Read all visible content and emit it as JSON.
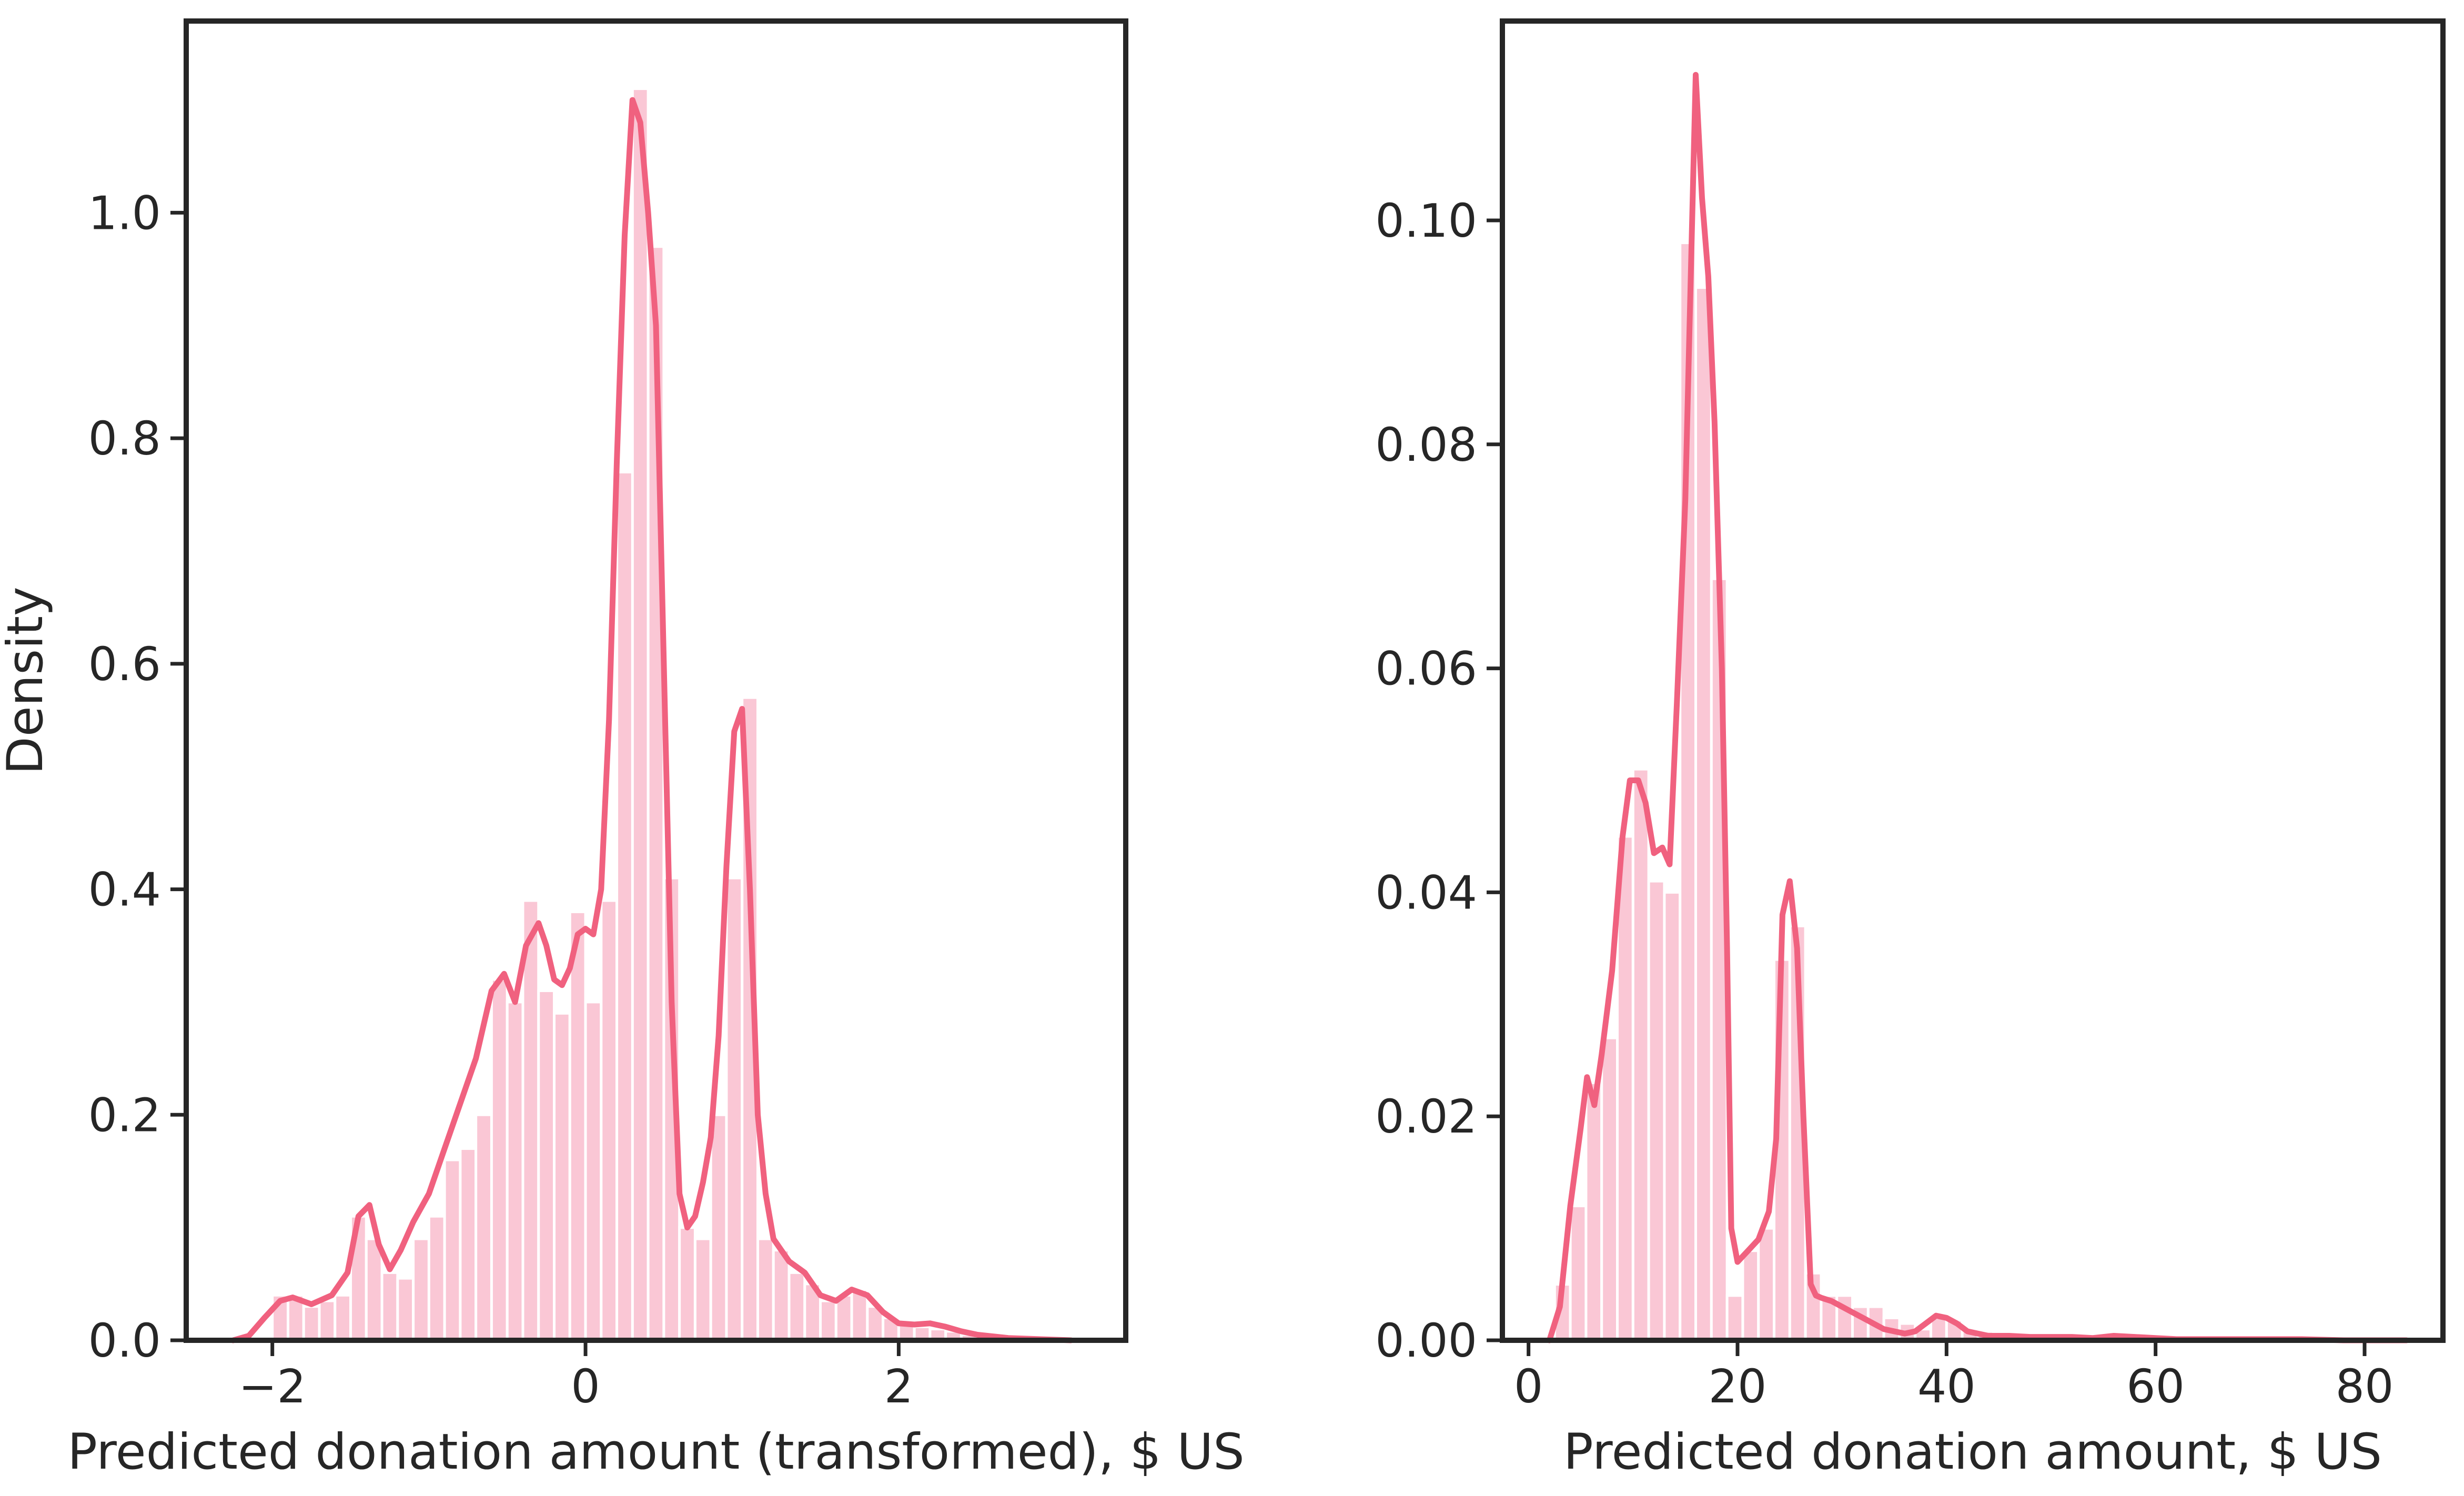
{
  "colors": {
    "bar": "#f7a4bb",
    "kde": "#f0617f",
    "axis": "#262626"
  },
  "chart_data": [
    {
      "type": "bar",
      "kind": "histogram with kde density curve",
      "title": "",
      "xlabel": "Predicted donation amount (transformed), $ US",
      "ylabel": "Density",
      "xlim": [
        -2.55,
        3.45
      ],
      "ylim": [
        0,
        1.17
      ],
      "xticks": [
        -2,
        0,
        2
      ],
      "xtick_labels": [
        "−2",
        "0",
        "2"
      ],
      "yticks": [
        0.0,
        0.2,
        0.4,
        0.6,
        0.8,
        1.0
      ],
      "ytick_labels": [
        "0.0",
        "0.2",
        "0.4",
        "0.6",
        "0.8",
        "1.0"
      ],
      "grid": false,
      "bin_width": 0.1,
      "bins": [
        {
          "x0": -2.0,
          "value": 0.04
        },
        {
          "x0": -1.9,
          "value": 0.04
        },
        {
          "x0": -1.8,
          "value": 0.03
        },
        {
          "x0": -1.7,
          "value": 0.035
        },
        {
          "x0": -1.6,
          "value": 0.04
        },
        {
          "x0": -1.5,
          "value": 0.11
        },
        {
          "x0": -1.4,
          "value": 0.09
        },
        {
          "x0": -1.3,
          "value": 0.06
        },
        {
          "x0": -1.2,
          "value": 0.055
        },
        {
          "x0": -1.1,
          "value": 0.09
        },
        {
          "x0": -1.0,
          "value": 0.11
        },
        {
          "x0": -0.9,
          "value": 0.16
        },
        {
          "x0": -0.8,
          "value": 0.17
        },
        {
          "x0": -0.7,
          "value": 0.2
        },
        {
          "x0": -0.6,
          "value": 0.32
        },
        {
          "x0": -0.5,
          "value": 0.3
        },
        {
          "x0": -0.4,
          "value": 0.39
        },
        {
          "x0": -0.3,
          "value": 0.31
        },
        {
          "x0": -0.2,
          "value": 0.29
        },
        {
          "x0": -0.1,
          "value": 0.38
        },
        {
          "x0": 0.0,
          "value": 0.3
        },
        {
          "x0": 0.1,
          "value": 0.39
        },
        {
          "x0": 0.2,
          "value": 0.77
        },
        {
          "x0": 0.3,
          "value": 1.11
        },
        {
          "x0": 0.4,
          "value": 0.97
        },
        {
          "x0": 0.5,
          "value": 0.41
        },
        {
          "x0": 0.6,
          "value": 0.1
        },
        {
          "x0": 0.7,
          "value": 0.09
        },
        {
          "x0": 0.8,
          "value": 0.2
        },
        {
          "x0": 0.9,
          "value": 0.41
        },
        {
          "x0": 1.0,
          "value": 0.57
        },
        {
          "x0": 1.1,
          "value": 0.09
        },
        {
          "x0": 1.2,
          "value": 0.08
        },
        {
          "x0": 1.3,
          "value": 0.06
        },
        {
          "x0": 1.4,
          "value": 0.05
        },
        {
          "x0": 1.5,
          "value": 0.035
        },
        {
          "x0": 1.6,
          "value": 0.04
        },
        {
          "x0": 1.7,
          "value": 0.045
        },
        {
          "x0": 1.8,
          "value": 0.03
        },
        {
          "x0": 1.9,
          "value": 0.02
        },
        {
          "x0": 2.0,
          "value": 0.015
        },
        {
          "x0": 2.1,
          "value": 0.012
        },
        {
          "x0": 2.2,
          "value": 0.01
        },
        {
          "x0": 2.3,
          "value": 0.008
        },
        {
          "x0": 2.4,
          "value": 0.005
        },
        {
          "x0": 2.5,
          "value": 0.004
        },
        {
          "x0": 2.6,
          "value": 0.003
        },
        {
          "x0": 2.7,
          "value": 0.002
        },
        {
          "x0": 2.8,
          "value": 0.002
        },
        {
          "x0": 2.9,
          "value": 0.001
        }
      ],
      "kde": {
        "x": [
          -2.25,
          -2.15,
          -2.05,
          -1.95,
          -1.87,
          -1.75,
          -1.62,
          -1.52,
          -1.45,
          -1.38,
          -1.32,
          -1.25,
          -1.18,
          -1.1,
          -1.0,
          -0.9,
          -0.8,
          -0.7,
          -0.6,
          -0.52,
          -0.45,
          -0.38,
          -0.3,
          -0.25,
          -0.2,
          -0.15,
          -0.1,
          -0.05,
          0.0,
          0.05,
          0.1,
          0.15,
          0.2,
          0.25,
          0.3,
          0.35,
          0.4,
          0.45,
          0.5,
          0.55,
          0.6,
          0.65,
          0.7,
          0.75,
          0.8,
          0.85,
          0.9,
          0.95,
          1.0,
          1.05,
          1.1,
          1.15,
          1.2,
          1.25,
          1.3,
          1.4,
          1.5,
          1.6,
          1.7,
          1.8,
          1.9,
          2.0,
          2.1,
          2.2,
          2.3,
          2.4,
          2.5,
          2.7,
          2.9,
          3.1
        ],
        "y": [
          0.0,
          0.004,
          0.02,
          0.035,
          0.038,
          0.032,
          0.04,
          0.06,
          0.11,
          0.12,
          0.085,
          0.063,
          0.08,
          0.105,
          0.13,
          0.17,
          0.21,
          0.25,
          0.31,
          0.325,
          0.3,
          0.35,
          0.37,
          0.35,
          0.32,
          0.315,
          0.33,
          0.36,
          0.365,
          0.36,
          0.4,
          0.55,
          0.78,
          0.98,
          1.1,
          1.08,
          1.0,
          0.9,
          0.6,
          0.3,
          0.13,
          0.1,
          0.11,
          0.14,
          0.18,
          0.27,
          0.42,
          0.54,
          0.56,
          0.4,
          0.2,
          0.13,
          0.09,
          0.08,
          0.07,
          0.06,
          0.04,
          0.035,
          0.045,
          0.04,
          0.025,
          0.015,
          0.014,
          0.015,
          0.012,
          0.008,
          0.005,
          0.002,
          0.001,
          0.0
        ]
      }
    },
    {
      "type": "bar",
      "kind": "histogram with kde density curve",
      "title": "",
      "xlabel": "Predicted donation amount, $ US",
      "ylabel": "",
      "xlim": [
        -2.5,
        87.5
      ],
      "ylim": [
        0,
        0.1178
      ],
      "xticks": [
        0,
        20,
        40,
        60,
        80
      ],
      "xtick_labels": [
        "0",
        "20",
        "40",
        "60",
        "80"
      ],
      "yticks": [
        0.0,
        0.02,
        0.04,
        0.06,
        0.08,
        0.1
      ],
      "ytick_labels": [
        "0.00",
        "0.02",
        "0.04",
        "0.06",
        "0.08",
        "0.10"
      ],
      "grid": false,
      "bin_width": 1.5,
      "bins": [
        {
          "x0": 2.5,
          "value": 0.005
        },
        {
          "x0": 4.0,
          "value": 0.012
        },
        {
          "x0": 5.5,
          "value": 0.023
        },
        {
          "x0": 7.0,
          "value": 0.027
        },
        {
          "x0": 8.5,
          "value": 0.045
        },
        {
          "x0": 10.0,
          "value": 0.051
        },
        {
          "x0": 11.5,
          "value": 0.041
        },
        {
          "x0": 13.0,
          "value": 0.04
        },
        {
          "x0": 14.5,
          "value": 0.098
        },
        {
          "x0": 16.0,
          "value": 0.094
        },
        {
          "x0": 17.5,
          "value": 0.068
        },
        {
          "x0": 19.0,
          "value": 0.004
        },
        {
          "x0": 20.5,
          "value": 0.008
        },
        {
          "x0": 22.0,
          "value": 0.01
        },
        {
          "x0": 23.5,
          "value": 0.034
        },
        {
          "x0": 25.0,
          "value": 0.037
        },
        {
          "x0": 26.5,
          "value": 0.006
        },
        {
          "x0": 28.0,
          "value": 0.004
        },
        {
          "x0": 29.5,
          "value": 0.004
        },
        {
          "x0": 31.0,
          "value": 0.003
        },
        {
          "x0": 32.5,
          "value": 0.003
        },
        {
          "x0": 34.0,
          "value": 0.002
        },
        {
          "x0": 35.5,
          "value": 0.0015
        },
        {
          "x0": 37.0,
          "value": 0.001
        },
        {
          "x0": 38.5,
          "value": 0.002
        },
        {
          "x0": 40.0,
          "value": 0.0018
        },
        {
          "x0": 41.5,
          "value": 0.001
        },
        {
          "x0": 43.0,
          "value": 0.0008
        },
        {
          "x0": 44.5,
          "value": 0.0006
        },
        {
          "x0": 46.0,
          "value": 0.0004
        },
        {
          "x0": 47.5,
          "value": 0.0003
        },
        {
          "x0": 49.0,
          "value": 0.0003
        },
        {
          "x0": 50.5,
          "value": 0.0002
        },
        {
          "x0": 52.0,
          "value": 0.0003
        },
        {
          "x0": 53.5,
          "value": 0.0002
        },
        {
          "x0": 55.0,
          "value": 0.0002
        },
        {
          "x0": 56.5,
          "value": 0.0003
        },
        {
          "x0": 58.0,
          "value": 0.0002
        },
        {
          "x0": 59.5,
          "value": 0.0001
        },
        {
          "x0": 61.0,
          "value": 0.0001
        },
        {
          "x0": 62.5,
          "value": 0.0001
        },
        {
          "x0": 64.0,
          "value": 0.0001
        }
      ],
      "kde": {
        "x": [
          2.0,
          3.0,
          4.0,
          5.0,
          5.6,
          6.3,
          7.0,
          8.0,
          9.0,
          9.7,
          10.5,
          11.2,
          12.0,
          12.8,
          13.5,
          14.2,
          15.0,
          15.5,
          16.0,
          16.6,
          17.2,
          17.8,
          18.5,
          19.0,
          19.4,
          20.0,
          21.0,
          22.0,
          23.0,
          23.7,
          24.3,
          25.0,
          25.7,
          26.3,
          27.0,
          27.5,
          28.0,
          29.0,
          30.0,
          31.0,
          32.0,
          33.0,
          34.0,
          35.0,
          36.0,
          37.0,
          38.0,
          39.0,
          40.0,
          41.0,
          42.0,
          43.0,
          44.0,
          46.0,
          48.0,
          50.0,
          52.0,
          54.0,
          56.0,
          58.0,
          60.0,
          62.0,
          66.0,
          70.0,
          74.0,
          78.0,
          84.0
        ],
        "y": [
          0.0,
          0.003,
          0.012,
          0.019,
          0.0235,
          0.021,
          0.0255,
          0.033,
          0.045,
          0.05,
          0.05,
          0.048,
          0.0435,
          0.044,
          0.0425,
          0.057,
          0.075,
          0.094,
          0.113,
          0.102,
          0.095,
          0.082,
          0.06,
          0.035,
          0.01,
          0.007,
          0.008,
          0.009,
          0.0115,
          0.018,
          0.038,
          0.041,
          0.035,
          0.02,
          0.005,
          0.004,
          0.0038,
          0.0035,
          0.003,
          0.0025,
          0.002,
          0.0015,
          0.001,
          0.0008,
          0.0006,
          0.0008,
          0.0015,
          0.0022,
          0.002,
          0.0015,
          0.0008,
          0.0006,
          0.0004,
          0.0004,
          0.0003,
          0.0003,
          0.0003,
          0.0002,
          0.0004,
          0.0003,
          0.0002,
          0.0001,
          0.0001,
          0.0001,
          0.0001,
          0.0,
          0.0
        ]
      }
    }
  ]
}
